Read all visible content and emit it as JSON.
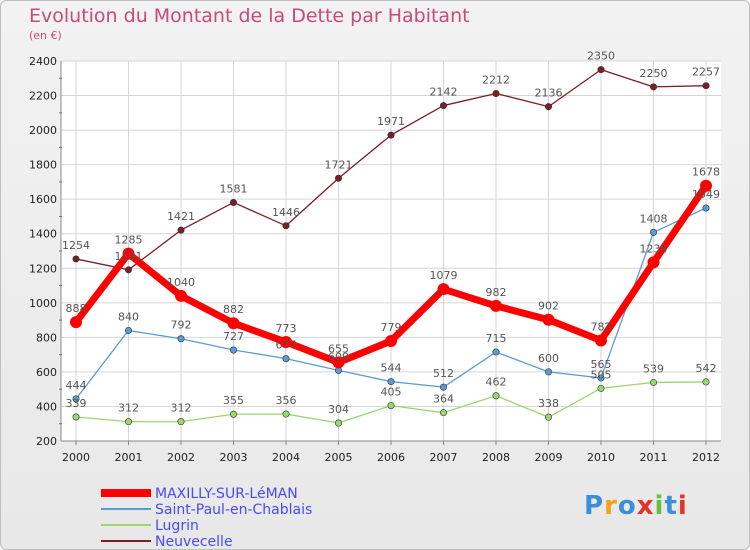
{
  "title": "Evolution du Montant de la Dette par Habitant",
  "unit_label": "(en €)",
  "logo_text": "Proxiti",
  "logo_colors": [
    "#3a8fd8",
    "#f2a21b",
    "#3a8fd8",
    "#e6332a",
    "#6cbf3a",
    "#3a8fd8",
    "#e6332a"
  ],
  "chart_data": {
    "type": "line",
    "x": [
      "2000",
      "2001",
      "2002",
      "2003",
      "2004",
      "2005",
      "2006",
      "2007",
      "2008",
      "2009",
      "2010",
      "2011",
      "2012"
    ],
    "ylim": [
      200,
      2400
    ],
    "yticks": [
      200,
      400,
      600,
      800,
      1000,
      1200,
      1400,
      1600,
      1800,
      2000,
      2200,
      2400
    ],
    "grid": true,
    "legend_position": "bottom-left",
    "series": [
      {
        "name": "Neuvecelle",
        "color": "#7a1f2a",
        "emphasis": false,
        "values": [
          1254,
          1191,
          1421,
          1581,
          1446,
          1721,
          1971,
          2142,
          2212,
          2136,
          2350,
          2250,
          2257
        ]
      },
      {
        "name": "Saint-Paul-en-Chablais",
        "color": "#5b9bd5",
        "emphasis": false,
        "values": [
          444,
          840,
          792,
          727,
          677,
          609,
          544,
          512,
          715,
          600,
          565,
          1408,
          1549
        ]
      },
      {
        "name": "Lugrin",
        "color": "#9bd66e",
        "emphasis": false,
        "values": [
          339,
          312,
          312,
          355,
          356,
          304,
          405,
          364,
          462,
          338,
          505,
          539,
          542
        ]
      },
      {
        "name": "MAXILLY-SUR-LéMAN",
        "color": "#ff0000",
        "emphasis": true,
        "values": [
          888,
          1285,
          1040,
          882,
          773,
          655,
          779,
          1079,
          982,
          902,
          782,
          1234,
          1678
        ]
      }
    ],
    "legend_order": [
      "MAXILLY-SUR-LéMAN",
      "Saint-Paul-en-Chablais",
      "Lugrin",
      "Neuvecelle"
    ]
  }
}
